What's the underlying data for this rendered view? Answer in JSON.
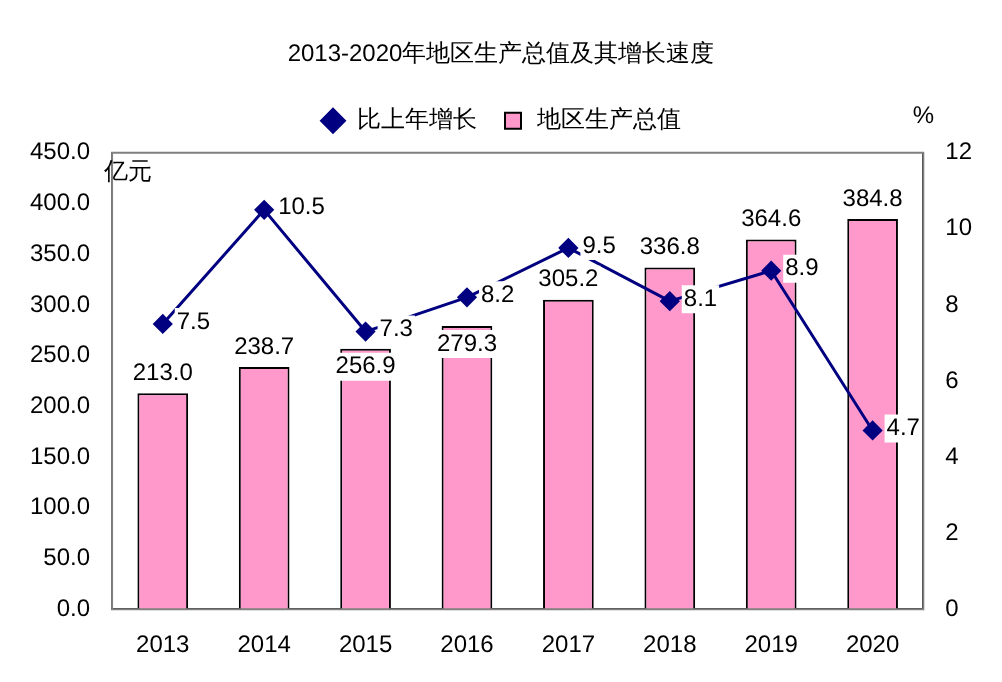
{
  "chart_data": {
    "type": "bar",
    "title": "2013-2020年地区生产总值及其增长速度",
    "categories": [
      "2013",
      "2014",
      "2015",
      "2016",
      "2017",
      "2018",
      "2019",
      "2020"
    ],
    "series": [
      {
        "name": "地区生产总值",
        "color": "#ff99cc",
        "values": [
          213.0,
          238.7,
          256.9,
          279.3,
          305.2,
          336.8,
          364.6,
          384.8
        ],
        "value_labels": [
          "213.0",
          "238.7",
          "256.9",
          "279.3",
          "305.2",
          "336.8",
          "364.6",
          "384.8"
        ]
      },
      {
        "name": "比上年增长",
        "type": "line",
        "axis": "y2",
        "color": "#000080",
        "values": [
          7.5,
          10.5,
          7.3,
          8.2,
          9.5,
          8.1,
          8.9,
          4.7
        ],
        "value_labels": [
          "7.5",
          "10.5",
          "7.3",
          "8.2",
          "9.5",
          "8.1",
          "8.9",
          "4.7"
        ]
      }
    ],
    "ylabel": "亿元",
    "y2label": "%",
    "ylim": [
      0,
      450
    ],
    "yticks": [
      {
        "value": 0,
        "label": "0.0"
      },
      {
        "value": 50,
        "label": "50.0"
      },
      {
        "value": 100,
        "label": "100.0"
      },
      {
        "value": 150,
        "label": "150.0"
      },
      {
        "value": 200,
        "label": "200.0"
      },
      {
        "value": 250,
        "label": "250.0"
      },
      {
        "value": 300,
        "label": "300.0"
      },
      {
        "value": 350,
        "label": "350.0"
      },
      {
        "value": 400,
        "label": "400.0"
      },
      {
        "value": 450,
        "label": "450.0"
      }
    ],
    "y2lim": [
      0,
      12
    ],
    "y2ticks": [
      0,
      2,
      4,
      6,
      8,
      10,
      12
    ],
    "legend": "top",
    "grid": false,
    "marker": "diamond",
    "line_style": "solid"
  }
}
